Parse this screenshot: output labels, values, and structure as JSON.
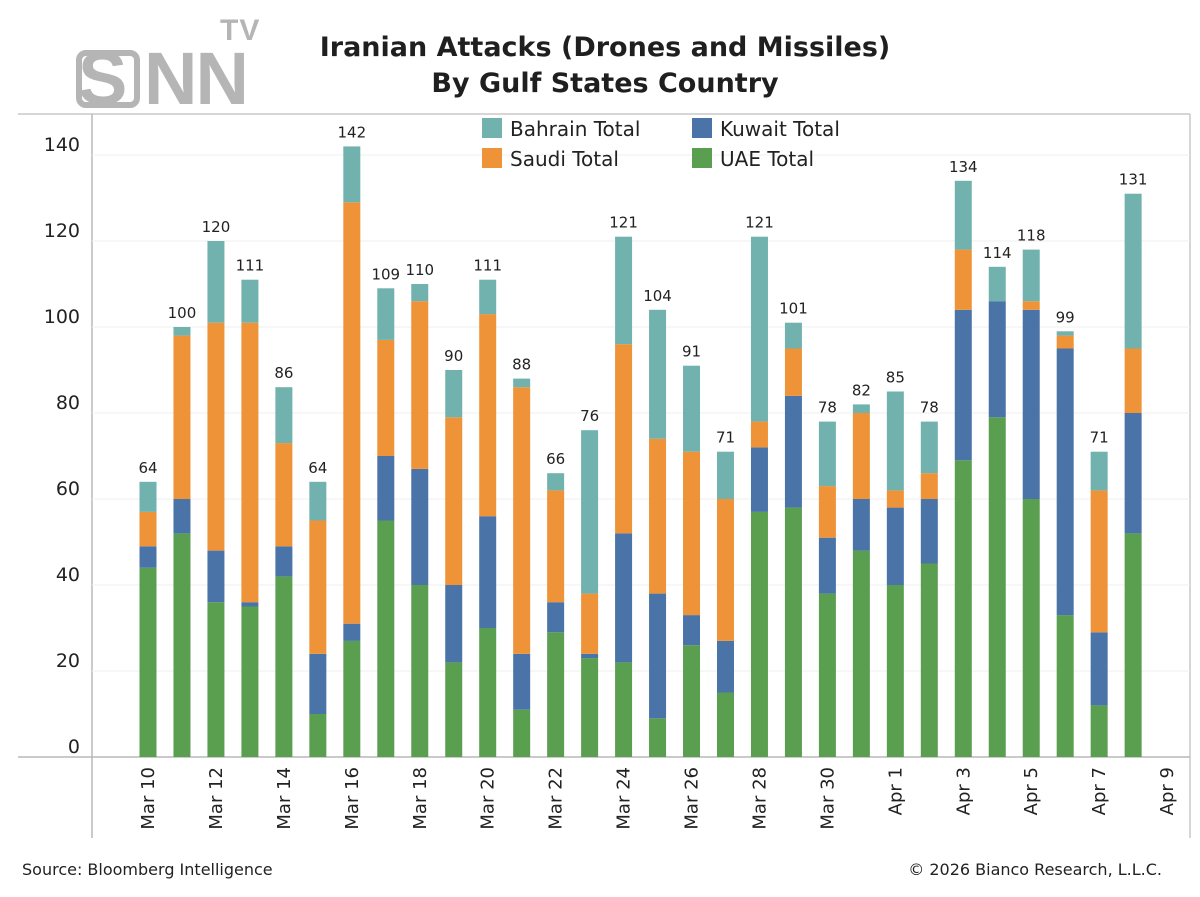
{
  "logo": {
    "main": "SNN",
    "letter_s": "S",
    "letters_nn": "NN",
    "superscript": "TV"
  },
  "footer": {
    "source": "Source: Bloomberg Intelligence",
    "copyright": "© 2026 Bianco Research, L.L.C."
  },
  "chart_data": {
    "type": "bar",
    "stacked": true,
    "title": "Iranian Attacks (Drones and Missiles)",
    "subtitle": "By Gulf States Country",
    "xlabel": "",
    "ylabel": "",
    "ylim": [
      0,
      140
    ],
    "yticks": [
      0,
      20,
      40,
      60,
      80,
      100,
      120,
      140
    ],
    "grid": true,
    "legend_position": "top-center",
    "legend_order": [
      "Bahrain Total",
      "Kuwait Total",
      "Saudi Total",
      "UAE Total"
    ],
    "categories": [
      "Mar 10",
      "Mar 11",
      "Mar 12",
      "Mar 13",
      "Mar 14",
      "Mar 15",
      "Mar 16",
      "Mar 17",
      "Mar 18",
      "Mar 19",
      "Mar 20",
      "Mar 21",
      "Mar 22",
      "Mar 23",
      "Mar 24",
      "Mar 25",
      "Mar 26",
      "Mar 27",
      "Mar 28",
      "Mar 29",
      "Mar 30",
      "Mar 31",
      "Apr 1",
      "Apr 2",
      "Apr 3",
      "Apr 4",
      "Apr 5",
      "Apr 6",
      "Apr 7",
      "Apr 8"
    ],
    "x_tick_labels": [
      "Mar 10",
      "Mar 12",
      "Mar 14",
      "Mar 16",
      "Mar 18",
      "Mar 20",
      "Mar 22",
      "Mar 24",
      "Mar 26",
      "Mar 28",
      "Mar 30",
      "Apr 1",
      "Apr 3",
      "Apr 5",
      "Apr 7",
      "Apr 9"
    ],
    "series": [
      {
        "name": "UAE Total",
        "color": "#5a9e50",
        "values": [
          44,
          52,
          36,
          35,
          42,
          10,
          27,
          55,
          40,
          22,
          30,
          11,
          29,
          23,
          22,
          9,
          26,
          15,
          57,
          58,
          38,
          48,
          40,
          45,
          69,
          79,
          60,
          33,
          12,
          52
        ]
      },
      {
        "name": "Kuwait Total",
        "color": "#4a74a8",
        "values": [
          5,
          8,
          12,
          1,
          7,
          14,
          4,
          15,
          27,
          18,
          26,
          13,
          7,
          1,
          30,
          29,
          7,
          12,
          15,
          26,
          13,
          12,
          18,
          15,
          35,
          27,
          44,
          62,
          17,
          28
        ]
      },
      {
        "name": "Saudi Total",
        "color": "#ee9338",
        "values": [
          8,
          38,
          53,
          65,
          24,
          31,
          98,
          27,
          39,
          39,
          47,
          62,
          26,
          14,
          44,
          36,
          38,
          33,
          6,
          11,
          12,
          20,
          4,
          6,
          14,
          0,
          2,
          3,
          33,
          15
        ]
      },
      {
        "name": "Bahrain Total",
        "color": "#71b2ae",
        "values": [
          7,
          2,
          19,
          10,
          13,
          9,
          13,
          12,
          4,
          11,
          8,
          2,
          4,
          38,
          25,
          30,
          20,
          11,
          43,
          6,
          15,
          2,
          23,
          12,
          16,
          8,
          12,
          1,
          9,
          36
        ]
      }
    ],
    "totals": [
      64,
      100,
      120,
      111,
      86,
      64,
      142,
      109,
      110,
      90,
      111,
      88,
      66,
      76,
      121,
      104,
      91,
      71,
      121,
      101,
      78,
      82,
      85,
      78,
      134,
      114,
      118,
      99,
      71,
      131
    ]
  }
}
